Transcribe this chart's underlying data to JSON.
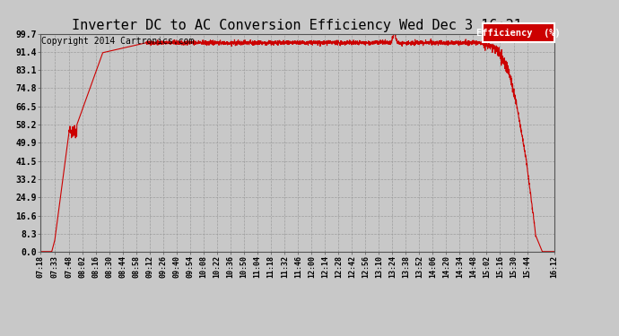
{
  "title": "Inverter DC to AC Conversion Efficiency Wed Dec 3 16:21",
  "copyright": "Copyright 2014 Cartronics.com",
  "legend_label": "Efficiency  (%)",
  "legend_bg": "#cc0000",
  "legend_text_color": "#ffffff",
  "line_color": "#cc0000",
  "bg_color": "#c8c8c8",
  "plot_bg_color": "#c8c8c8",
  "title_fontsize": 11,
  "copyright_fontsize": 7,
  "ytick_labels": [
    "0.0",
    "8.3",
    "16.6",
    "24.9",
    "33.2",
    "41.5",
    "49.9",
    "58.2",
    "66.5",
    "74.8",
    "83.1",
    "91.4",
    "99.7"
  ],
  "ytick_values": [
    0.0,
    8.3,
    16.6,
    24.9,
    33.2,
    41.5,
    49.9,
    58.2,
    66.5,
    74.8,
    83.1,
    91.4,
    99.7
  ],
  "xtick_labels": [
    "07:18",
    "07:33",
    "07:48",
    "08:02",
    "08:16",
    "08:30",
    "08:44",
    "08:58",
    "09:12",
    "09:26",
    "09:40",
    "09:54",
    "10:08",
    "10:22",
    "10:36",
    "10:50",
    "11:04",
    "11:18",
    "11:32",
    "11:46",
    "12:00",
    "12:14",
    "12:28",
    "12:42",
    "12:56",
    "13:10",
    "13:24",
    "13:38",
    "13:52",
    "14:06",
    "14:20",
    "14:34",
    "14:48",
    "15:02",
    "15:16",
    "15:30",
    "15:44",
    "16:12"
  ],
  "ymin": 0.0,
  "ymax": 99.7,
  "grid_color": "#999999",
  "grid_style": "--",
  "total_minutes": 534
}
